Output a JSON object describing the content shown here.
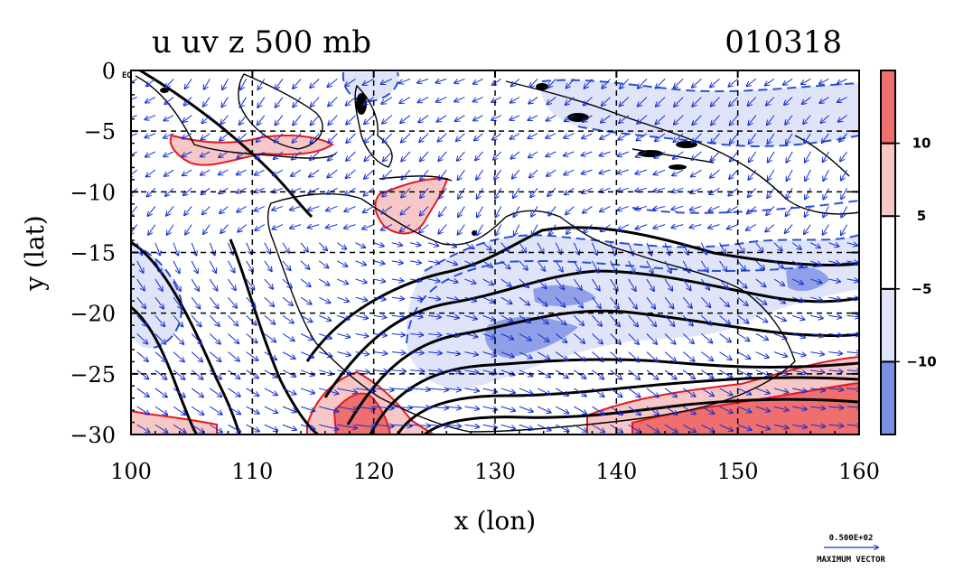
{
  "chart_data": {
    "type": "contour-map",
    "title_left": "u uv z 500 mb",
    "title_right": "010318",
    "xlabel": "x (lon)",
    "ylabel": "y (lat)",
    "xlim": [
      100,
      160
    ],
    "ylim": [
      -30,
      0
    ],
    "x_ticks": [
      100,
      110,
      120,
      130,
      140,
      150,
      160
    ],
    "x_tick_labels": [
      "100",
      "110",
      "120",
      "130",
      "140",
      "150",
      "160"
    ],
    "y_ticks": [
      0,
      -5,
      -10,
      -15,
      -20,
      -25,
      -30
    ],
    "y_tick_labels": [
      "0",
      "−5",
      "−10",
      "−15",
      "−20",
      "−25",
      "−30"
    ],
    "corner_label": "EQ",
    "grid": true,
    "colorbar": {
      "levels": [
        -10,
        -5,
        5,
        10
      ],
      "labels": [
        "−10",
        "−5",
        "5",
        "10"
      ],
      "colors": [
        "#7b8fe3",
        "#dfe4f8",
        "#ffffff",
        "#f7c6c6",
        "#ef6e6e"
      ]
    },
    "vector_reference": {
      "value_label": "0.500E+02",
      "caption": "MAXIMUM VECTOR"
    },
    "colors": {
      "positive_contour": "#e31a1c",
      "negative_contour": "#2b50d6",
      "height_contour": "#000000",
      "vector": "#1530cc",
      "grid": "#000000"
    }
  }
}
